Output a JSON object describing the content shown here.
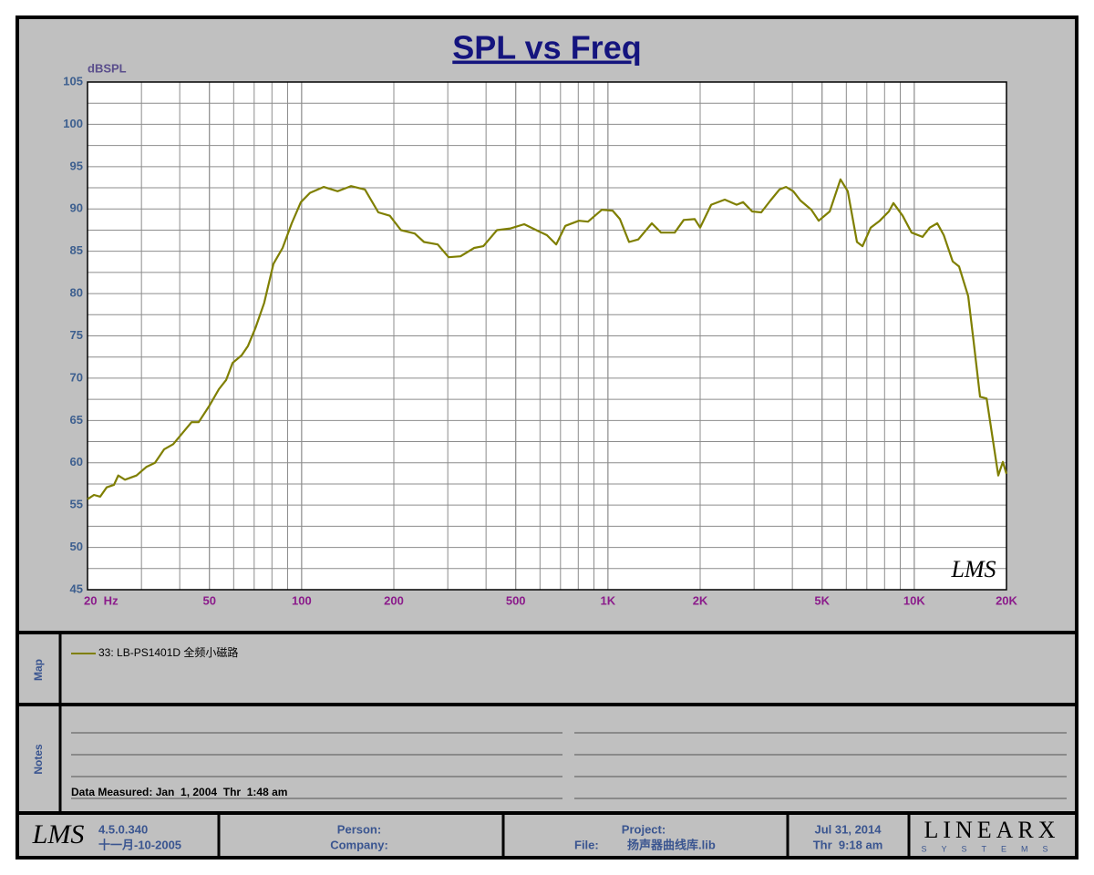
{
  "chart_data": {
    "type": "line",
    "title": "SPL vs Freq",
    "y_label": "dBSPL",
    "x_scale": "log",
    "grid": true,
    "minor_grid": true,
    "watermark": "LMS",
    "xlim": [
      20,
      20000
    ],
    "ylim": [
      45,
      105
    ],
    "xticks": [
      {
        "value": 20,
        "label": "20  Hz"
      },
      50,
      100,
      200,
      500,
      {
        "value": 1000,
        "label": "1K"
      },
      {
        "value": 2000,
        "label": "2K"
      },
      {
        "value": 5000,
        "label": "5K"
      },
      {
        "value": 10000,
        "label": "10K"
      },
      {
        "value": 20000,
        "label": "20K"
      }
    ],
    "yticks": [
      45,
      50,
      55,
      60,
      65,
      70,
      75,
      80,
      85,
      90,
      95,
      100,
      105
    ],
    "x": [
      20,
      21,
      22,
      23.1,
      24.4,
      25.2,
      26.5,
      28.9,
      31.1,
      33.2,
      35.6,
      38.1,
      40.8,
      43.7,
      46.1,
      50.1,
      53.7,
      56.7,
      59.5,
      63.7,
      66.8,
      70.6,
      75.5,
      80.9,
      86.7,
      92.8,
      99.4,
      106.5,
      118,
      131,
      145,
      161,
      178,
      194,
      211,
      234,
      251,
      278,
      302,
      330,
      366,
      392,
      434,
      481,
      533,
      591,
      632,
      678,
      726,
      804,
      861,
      955,
      1036,
      1094,
      1172,
      1256,
      1391,
      1491,
      1652,
      1768,
      1919,
      2000,
      2173,
      2406,
      2630,
      2761,
      2958,
      3165,
      3392,
      3631,
      3811,
      4027,
      4250,
      4616,
      4876,
      5297,
      5743,
      6067,
      6501,
      6777,
      7211,
      7716,
      8264,
      8551,
      9162,
      9800,
      10640,
      11240,
      11890,
      12480,
      13350,
      14000,
      15000,
      15630,
      16400,
      17220,
      18800,
      19460,
      20000
    ],
    "series": [
      {
        "name": "33: LB-PS1401D 全频小磁路",
        "color": "#7f7f00",
        "values": [
          55.7,
          56.2,
          56.0,
          57.1,
          57.4,
          58.5,
          58.0,
          58.5,
          59.5,
          60.0,
          61.6,
          62.2,
          63.5,
          64.8,
          64.8,
          66.8,
          68.7,
          69.8,
          71.8,
          72.7,
          73.8,
          75.9,
          78.9,
          83.5,
          85.4,
          88.3,
          90.8,
          91.9,
          92.6,
          92.1,
          92.7,
          92.3,
          89.6,
          89.2,
          87.5,
          87.1,
          86.1,
          85.8,
          84.3,
          84.4,
          85.4,
          85.6,
          87.5,
          87.7,
          88.2,
          87.4,
          86.9,
          85.8,
          88.0,
          88.6,
          88.5,
          89.9,
          89.8,
          88.8,
          86.1,
          86.4,
          88.3,
          87.2,
          87.2,
          88.7,
          88.8,
          87.8,
          90.5,
          91.1,
          90.5,
          90.8,
          89.7,
          89.6,
          91.0,
          92.3,
          92.6,
          92.1,
          91.0,
          89.9,
          88.6,
          89.7,
          93.5,
          92.1,
          86.1,
          85.6,
          87.8,
          88.6,
          89.7,
          90.7,
          89.2,
          87.2,
          86.7,
          87.8,
          88.3,
          86.9,
          83.8,
          83.2,
          79.7,
          74.3,
          67.8,
          67.6,
          58.5,
          60.1,
          58.7
        ]
      }
    ]
  },
  "panels": {
    "map_label": "Map",
    "notes_label": "Notes",
    "data_measured": "Data Measured: Jan  1, 2004  Thr  1:48 am"
  },
  "footer": {
    "logo": "LMS",
    "version": "4.5.0.340",
    "build_date": "十一月-10-2005",
    "person": "Person:",
    "company": "Company:",
    "project": "Project:",
    "file_label": "File:",
    "file": "扬声器曲线库.lib",
    "date": "Jul 31, 2014",
    "time": "Thr  9:18 am",
    "brand": "LINEARX",
    "brand_sub": "SYSTEMS"
  }
}
